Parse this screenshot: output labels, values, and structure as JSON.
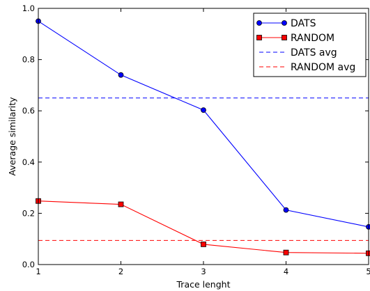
{
  "chart_data": {
    "type": "line",
    "x": [
      1,
      2,
      3,
      4,
      5
    ],
    "xticks": [
      "1",
      "2",
      "3",
      "4",
      "5"
    ],
    "yticks": [
      "0.0",
      "0.2",
      "0.4",
      "0.6",
      "0.8",
      "1.0"
    ],
    "xlabel": "Trace lenght",
    "ylabel": "Average similarity",
    "xlim": [
      1,
      5
    ],
    "ylim": [
      0.0,
      1.0
    ],
    "grid": false,
    "legend_position": "top-right",
    "series": [
      {
        "name": "DATS",
        "values": [
          0.95,
          0.74,
          0.603,
          0.213,
          0.147
        ],
        "color": "#0000ff",
        "marker": "circle",
        "style": "solid"
      },
      {
        "name": "RANDOM",
        "values": [
          0.248,
          0.235,
          0.079,
          0.047,
          0.044
        ],
        "color": "#ff0000",
        "marker": "square",
        "style": "solid"
      }
    ],
    "reference_lines": [
      {
        "name": "DATS avg",
        "value": 0.65,
        "color": "#0000ff",
        "style": "dashed"
      },
      {
        "name": "RANDOM avg",
        "value": 0.094,
        "color": "#ff0000",
        "style": "dashed"
      }
    ]
  }
}
